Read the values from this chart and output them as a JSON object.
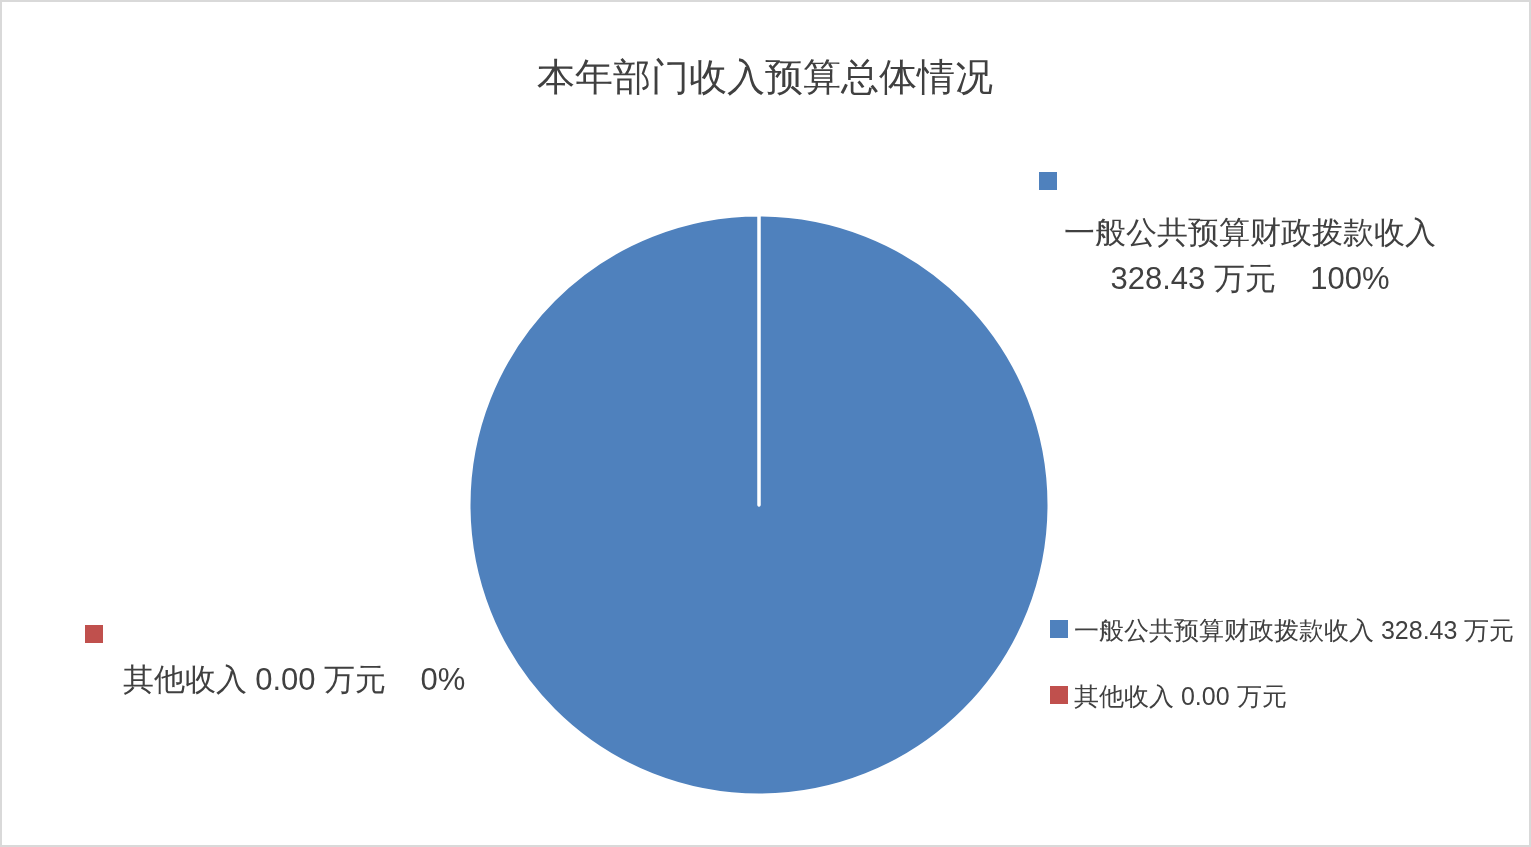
{
  "chart_data": {
    "type": "pie",
    "title": "本年部门收入预算总体情况",
    "categories": [
      "一般公共预算财政拨款收入 328.43 万元",
      "其他收入 0.00 万元"
    ],
    "values": [
      100,
      0
    ],
    "colors": [
      "#4f81bd",
      "#c0504d"
    ],
    "value_labels": [
      "100%",
      "0%"
    ],
    "legend": "right"
  }
}
